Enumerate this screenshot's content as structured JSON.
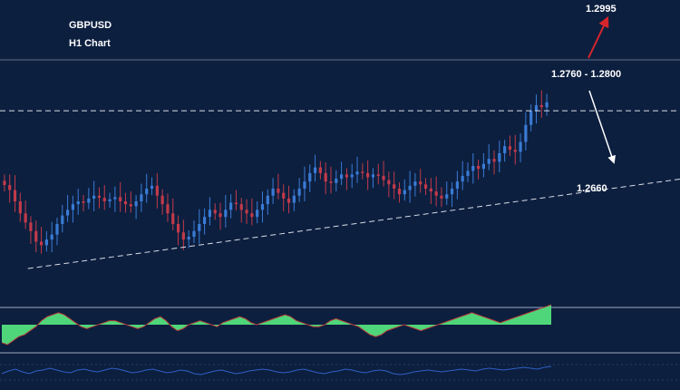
{
  "symbol": "GBPUSD",
  "timeframe": "H1 Chart",
  "colors": {
    "background": "#0c1f3f",
    "up_candle": "#3a7bd5",
    "down_candle": "#c23a4a",
    "dashed_line": "#d9dde6",
    "up_arrow": "#d6262c",
    "down_arrow": "#ffffff",
    "histogram": "#4fd67a",
    "oscillator": "#2f5fc4",
    "separator": "#7f8ea6"
  },
  "annotations": {
    "target_up": "1.2995",
    "resistance_zone": "1.2760 - 1.2800",
    "support": "1.2660"
  },
  "chart_data": [
    {
      "type": "candlestick",
      "title": "GBPUSD",
      "subtitle": "H1 Chart",
      "close": [
        1.2695,
        1.2688,
        1.2672,
        1.2655,
        1.2642,
        1.263,
        1.2615,
        1.261,
        1.2618,
        1.2625,
        1.264,
        1.2652,
        1.266,
        1.2668,
        1.2672,
        1.267,
        1.2676,
        1.268,
        1.2677,
        1.2672,
        1.2675,
        1.2678,
        1.2672,
        1.2668,
        1.2665,
        1.2672,
        1.2682,
        1.269,
        1.2694,
        1.268,
        1.2668,
        1.2655,
        1.264,
        1.2628,
        1.2618,
        1.2622,
        1.263,
        1.264,
        1.265,
        1.266,
        1.2655,
        1.265,
        1.266,
        1.267,
        1.2668,
        1.266,
        1.2655,
        1.265,
        1.266,
        1.2668,
        1.268,
        1.269,
        1.2684,
        1.2676,
        1.267,
        1.268,
        1.269,
        1.27,
        1.2712,
        1.272,
        1.2712,
        1.27,
        1.2698,
        1.2704,
        1.271,
        1.2706,
        1.271,
        1.2714,
        1.2712,
        1.2706,
        1.271,
        1.2708,
        1.2702,
        1.2696,
        1.269,
        1.2682,
        1.2688,
        1.2694,
        1.27,
        1.2696,
        1.269,
        1.2686,
        1.268,
        1.2676,
        1.2682,
        1.269,
        1.27,
        1.2708,
        1.2715,
        1.2722,
        1.2718,
        1.2725,
        1.2732,
        1.2728,
        1.274,
        1.275,
        1.2745,
        1.2742,
        1.2756,
        1.278,
        1.28,
        1.2808,
        1.2805,
        1.2812
      ],
      "series": [
        {
          "name": "GBPUSD",
          "values": [
            1.2695,
            1.2688,
            1.2672,
            1.2655,
            1.2642,
            1.263,
            1.2615,
            1.261,
            1.2618,
            1.2625,
            1.264,
            1.2652,
            1.266,
            1.2668,
            1.2672,
            1.267,
            1.2676,
            1.268,
            1.2677,
            1.2672,
            1.2675,
            1.2678,
            1.2672,
            1.2668,
            1.2665,
            1.2672,
            1.2682,
            1.269,
            1.2694,
            1.268,
            1.2668,
            1.2655,
            1.264,
            1.2628,
            1.2618,
            1.2622,
            1.263,
            1.264,
            1.265,
            1.266,
            1.2655,
            1.265,
            1.266,
            1.267,
            1.2668,
            1.266,
            1.2655,
            1.265,
            1.266,
            1.2668,
            1.268,
            1.269,
            1.2684,
            1.2676,
            1.267,
            1.268,
            1.269,
            1.27,
            1.2712,
            1.272,
            1.2712,
            1.27,
            1.2698,
            1.2704,
            1.271,
            1.2706,
            1.271,
            1.2714,
            1.2712,
            1.2706,
            1.271,
            1.2708,
            1.2702,
            1.2696,
            1.269,
            1.2682,
            1.2688,
            1.2694,
            1.27,
            1.2696,
            1.269,
            1.2686,
            1.268,
            1.2676,
            1.2682,
            1.269,
            1.27,
            1.2708,
            1.2715,
            1.2722,
            1.2718,
            1.2725,
            1.2732,
            1.2728,
            1.274,
            1.275,
            1.2745,
            1.2742,
            1.2756,
            1.278,
            1.28,
            1.2808,
            1.2805,
            1.2812
          ]
        }
      ],
      "ylim": [
        1.2572,
        1.2872
      ],
      "levels": [
        {
          "label": "1.2760 - 1.2800",
          "value": 1.28,
          "style": "dashed horizontal"
        },
        {
          "label": "1.2660",
          "style": "dashed ascending trendline"
        }
      ],
      "trendline": {
        "start": {
          "bar": 1,
          "price": 1.2577
        },
        "end": {
          "bar": 149,
          "price": 1.2706
        }
      },
      "arrows": [
        {
          "label": "1.2995",
          "direction": "up",
          "color": "#d6262c"
        },
        {
          "label": "",
          "direction": "down",
          "color": "#ffffff"
        }
      ],
      "grid": false,
      "legend": "none"
    },
    {
      "type": "area",
      "values": [
        -0.9,
        -1.0,
        -0.8,
        -0.6,
        -0.5,
        -0.3,
        -0.1,
        0.2,
        0.4,
        0.5,
        0.6,
        0.5,
        0.3,
        0.1,
        -0.1,
        -0.2,
        -0.1,
        0.0,
        0.1,
        0.2,
        0.2,
        0.1,
        0.0,
        -0.1,
        -0.2,
        -0.1,
        0.1,
        0.3,
        0.4,
        0.2,
        -0.1,
        -0.3,
        -0.2,
        0.0,
        0.1,
        0.2,
        0.1,
        0.0,
        -0.1,
        0.1,
        0.2,
        0.3,
        0.4,
        0.3,
        0.1,
        0.0,
        0.1,
        0.2,
        0.3,
        0.4,
        0.5,
        0.4,
        0.2,
        0.1,
        0.0,
        -0.1,
        -0.1,
        0.0,
        0.2,
        0.3,
        0.2,
        0.1,
        0.0,
        -0.1,
        -0.3,
        -0.5,
        -0.6,
        -0.5,
        -0.3,
        -0.2,
        -0.1,
        0.0,
        -0.1,
        -0.2,
        -0.3,
        -0.2,
        -0.1,
        0.0,
        0.1,
        0.2,
        0.3,
        0.4,
        0.5,
        0.6,
        0.5,
        0.4,
        0.3,
        0.2,
        0.1,
        0.2,
        0.3,
        0.4,
        0.5,
        0.6,
        0.7,
        0.8,
        0.9,
        1.0
      ],
      "ylim": [
        -1.0,
        1.0
      ],
      "grid": false,
      "legend": "none"
    },
    {
      "type": "line",
      "values": [
        -0.2,
        0.1,
        0.3,
        0.0,
        -0.2,
        0.1,
        0.2,
        0.4,
        0.2,
        0.0,
        -0.1,
        0.2,
        0.3,
        0.1,
        0.0,
        0.2,
        0.4,
        0.3,
        0.1,
        -0.1,
        0.0,
        0.2,
        0.3,
        0.1,
        -0.1,
        0.0,
        0.2,
        0.1,
        -0.2,
        -0.3,
        -0.1,
        0.1,
        0.2,
        0.0,
        -0.2,
        -0.1,
        0.1,
        0.2,
        0.3,
        0.2,
        0.0,
        -0.1,
        0.0,
        0.2,
        0.3,
        0.1,
        -0.1,
        -0.2,
        0.0,
        0.1,
        0.3,
        0.2,
        0.0,
        -0.1,
        0.1,
        0.2,
        0.1,
        -0.2,
        -0.3,
        -0.2,
        0.0,
        0.1,
        0.2,
        0.1,
        0.0,
        0.1,
        0.2,
        0.3,
        0.2,
        0.1,
        0.3,
        0.4,
        0.3,
        0.2,
        0.3,
        0.4,
        0.5,
        0.4,
        0.3,
        0.5,
        0.6
      ],
      "ylim": [
        -1.0,
        1.0
      ],
      "grid": false,
      "legend": "none"
    }
  ]
}
